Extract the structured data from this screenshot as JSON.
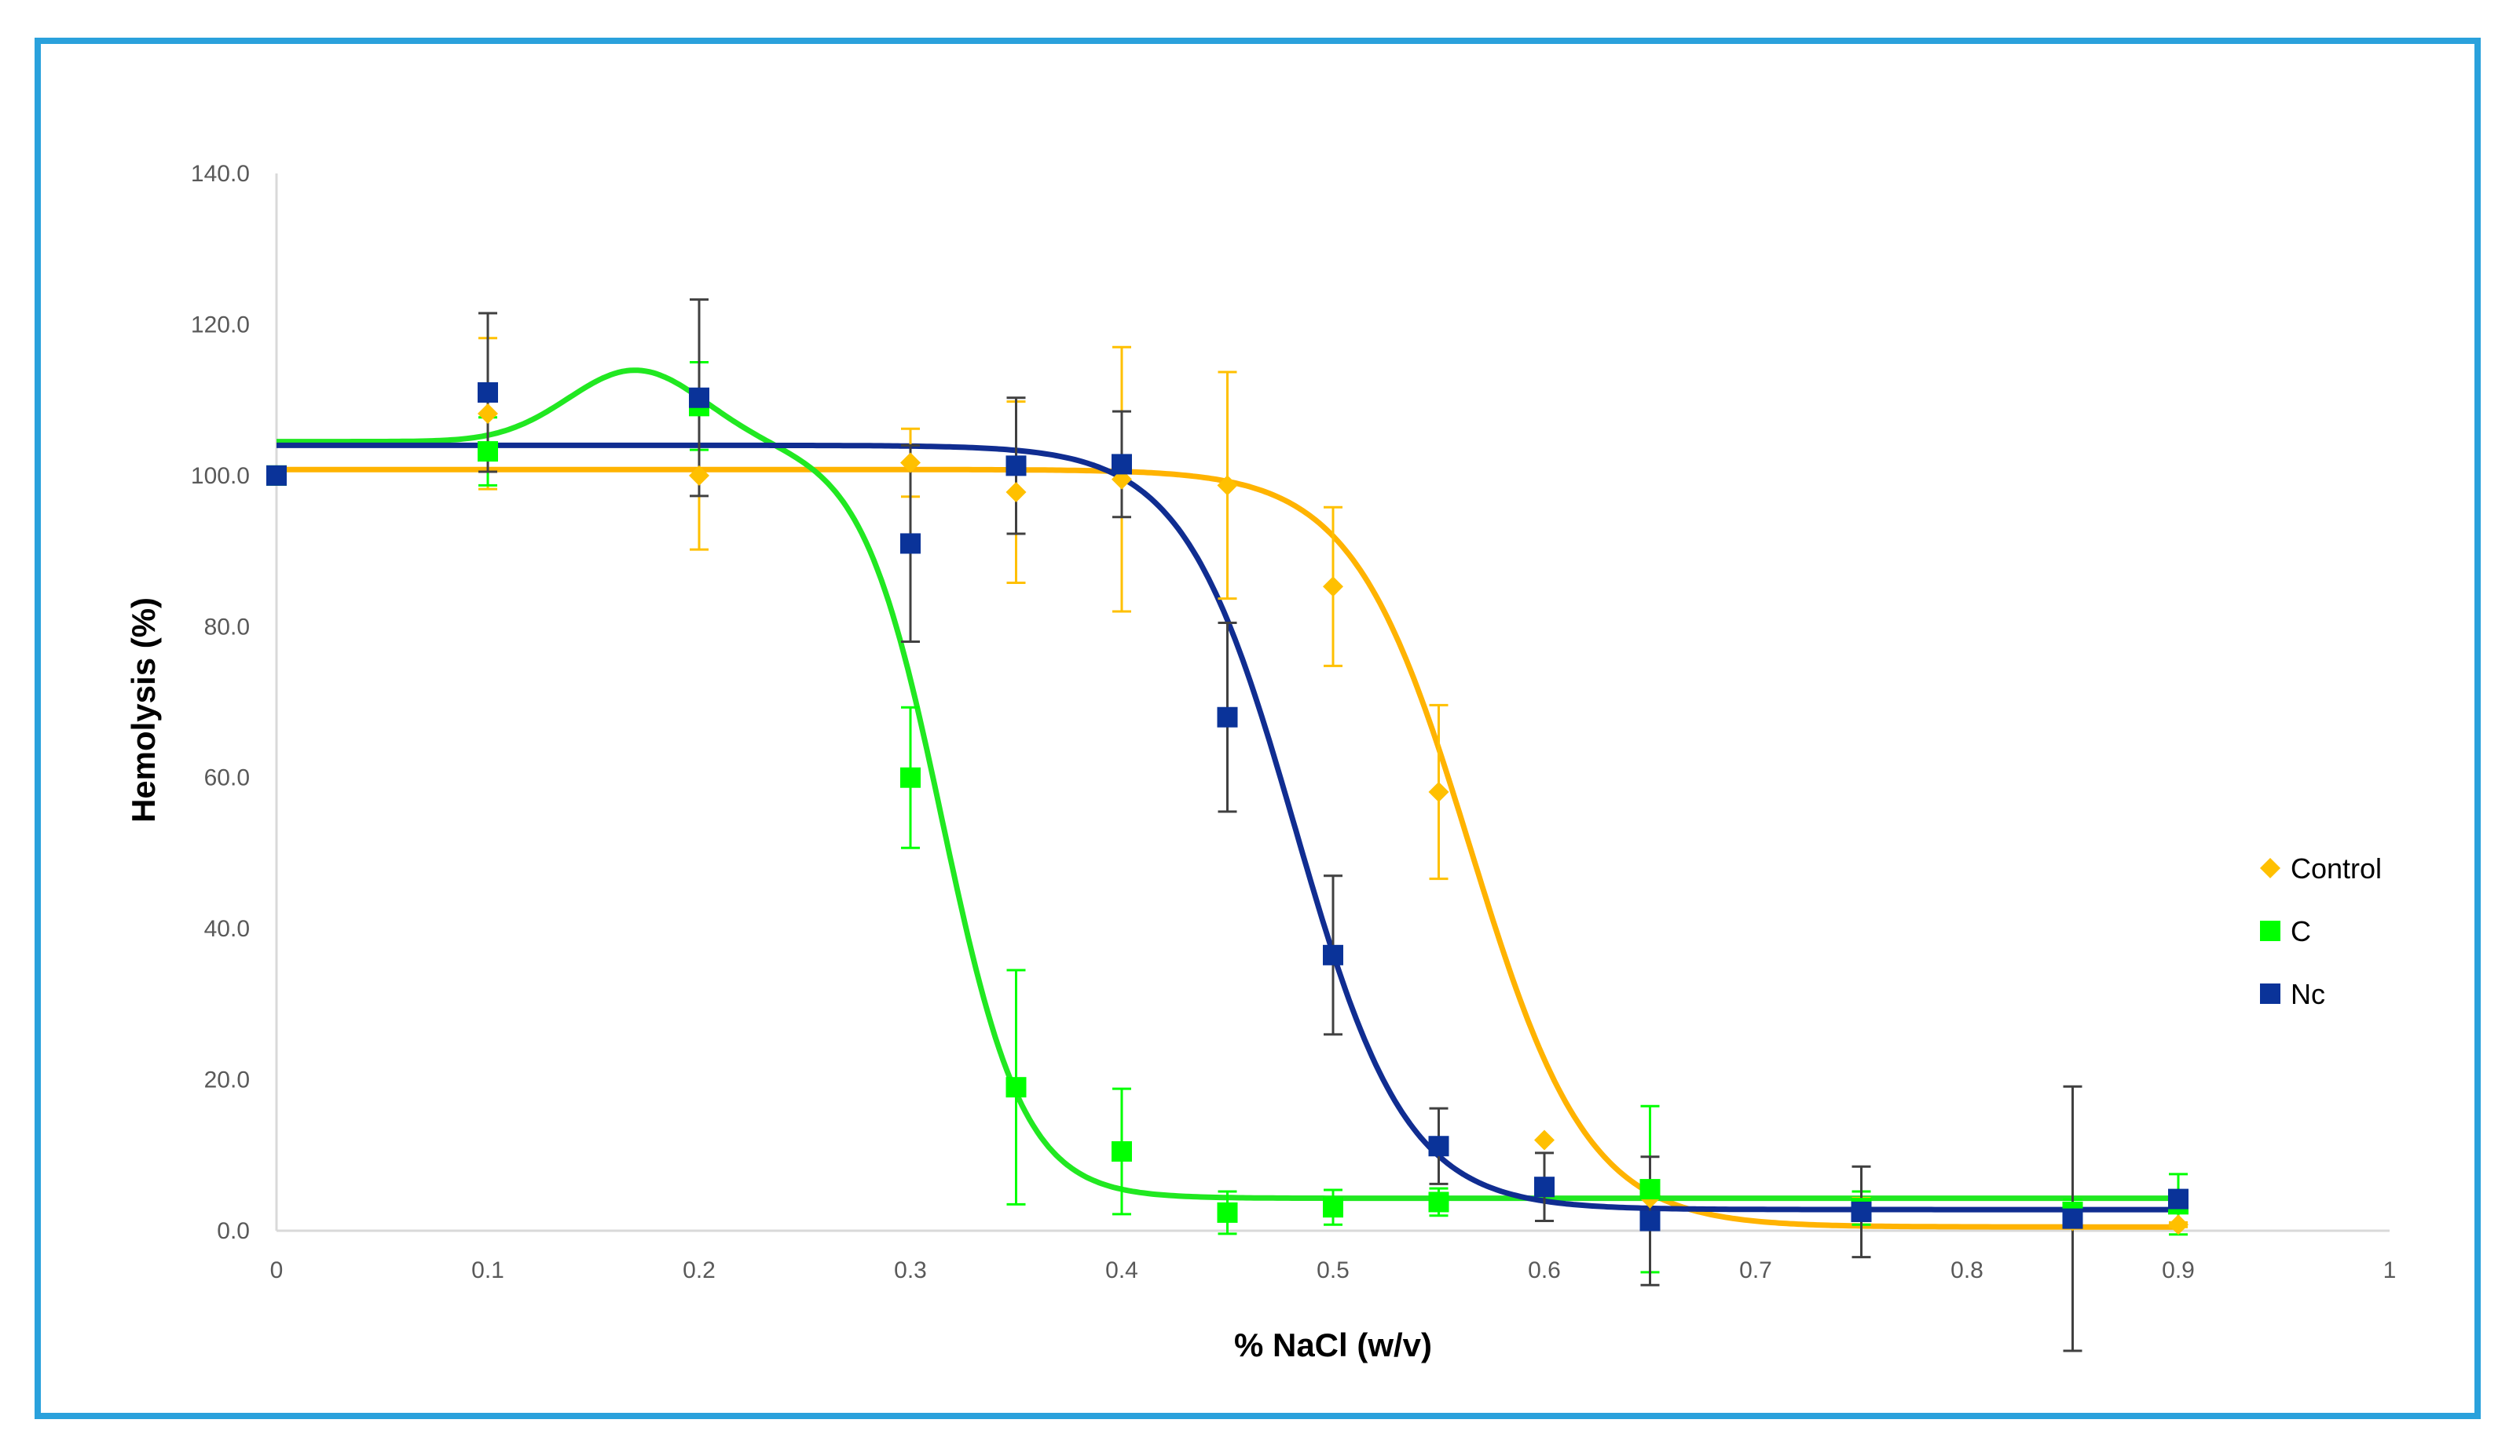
{
  "chart_data": {
    "type": "scatter",
    "xlabel": "% NaCl (w/v)",
    "ylabel": "Hemolysis (%)",
    "xlim": [
      0,
      1
    ],
    "ylim": [
      0,
      140
    ],
    "x_ticks": [
      "0",
      "0.1",
      "0.2",
      "0.3",
      "0.4",
      "0.5",
      "0.6",
      "0.7",
      "0.8",
      "0.9",
      "1"
    ],
    "y_ticks": [
      "0.0",
      "20.0",
      "40.0",
      "60.0",
      "80.0",
      "100.0",
      "120.0",
      "140.0"
    ],
    "grid": false,
    "legend_position": "right",
    "series": [
      {
        "name": "Control",
        "color": "#FFC000",
        "marker": "diamond",
        "x": [
          0,
          0.1,
          0.2,
          0.3,
          0.35,
          0.4,
          0.45,
          0.5,
          0.55,
          0.6,
          0.65,
          0.75,
          0.85,
          0.9
        ],
        "y": [
          100.0,
          108.2,
          100.0,
          101.7,
          97.8,
          99.5,
          98.7,
          85.3,
          58.1,
          12.0,
          4.3,
          2.8,
          1.3,
          0.8
        ],
        "error": [
          0,
          10.0,
          9.8,
          4.5,
          12.0,
          17.5,
          15.0,
          10.5,
          11.5,
          0,
          2.0,
          1.5,
          0.5,
          0.3
        ],
        "fit": {
          "top": 100.8,
          "bottom": 0.5,
          "x50": 0.565,
          "slope": 36
        },
        "fit_color": "#FFB300"
      },
      {
        "name": "C",
        "color": "#00FF00",
        "marker": "square",
        "x": [
          0,
          0.1,
          0.2,
          0.3,
          0.35,
          0.4,
          0.45,
          0.5,
          0.55,
          0.65,
          0.75,
          0.85,
          0.9
        ],
        "y": [
          100.0,
          103.2,
          109.2,
          60.0,
          19.0,
          10.5,
          2.4,
          3.1,
          3.8,
          5.5,
          3.0,
          2.5,
          3.5
        ],
        "error": [
          0,
          4.5,
          5.8,
          9.3,
          15.5,
          8.3,
          2.8,
          2.3,
          1.8,
          11.0,
          2.2,
          1.6,
          4.0
        ],
        "fit": {
          "top": 104.5,
          "bottom": 4.3,
          "x50": 0.315,
          "slope": 52,
          "bump": {
            "amp": 9.5,
            "center": 0.17,
            "width": 0.045
          }
        },
        "fit_color": "#21E821"
      },
      {
        "name": "Nc",
        "color": "#0A3399",
        "marker": "square",
        "x": [
          0,
          0.1,
          0.2,
          0.3,
          0.35,
          0.4,
          0.45,
          0.5,
          0.55,
          0.6,
          0.65,
          0.75,
          0.85,
          0.9
        ],
        "y": [
          100.0,
          111.0,
          110.3,
          91.0,
          101.3,
          101.5,
          68.0,
          36.5,
          11.2,
          5.8,
          1.3,
          2.5,
          1.6,
          4.2
        ],
        "error": [
          0,
          10.5,
          13.0,
          13.0,
          9.0,
          7.0,
          12.5,
          10.5,
          5.0,
          4.5,
          8.5,
          6.0,
          17.5,
          0
        ],
        "fit": {
          "top": 104.0,
          "bottom": 2.8,
          "x50": 0.482,
          "slope": 38
        },
        "fit_color": "#102D91"
      }
    ]
  }
}
